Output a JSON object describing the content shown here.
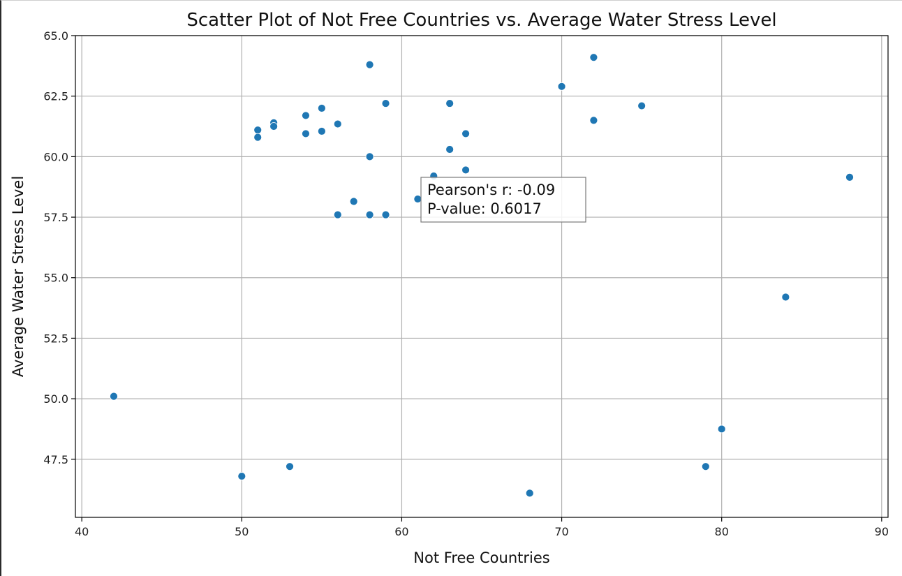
{
  "chart_data": {
    "type": "scatter",
    "title": "Scatter Plot of Not Free Countries vs. Average Water Stress Level",
    "xlabel": "Not Free Countries",
    "ylabel": "Average Water Stress Level",
    "xlim": [
      39.6,
      90.4
    ],
    "ylim": [
      45.1,
      65.0
    ],
    "xticks": [
      40,
      50,
      60,
      70,
      80,
      90
    ],
    "yticks": [
      47.5,
      50.0,
      52.5,
      55.0,
      57.5,
      60.0,
      62.5,
      65.0
    ],
    "xtick_labels": [
      "40",
      "50",
      "60",
      "70",
      "80",
      "90"
    ],
    "ytick_labels": [
      "47.5",
      "50.0",
      "52.5",
      "55.0",
      "57.5",
      "60.0",
      "62.5",
      "65.0"
    ],
    "grid": true,
    "marker_color": "#1f77b4",
    "points": [
      {
        "x": 42,
        "y": 50.1
      },
      {
        "x": 50,
        "y": 46.8
      },
      {
        "x": 51,
        "y": 61.1
      },
      {
        "x": 51,
        "y": 60.8
      },
      {
        "x": 52,
        "y": 61.4
      },
      {
        "x": 52,
        "y": 61.25
      },
      {
        "x": 53,
        "y": 47.2
      },
      {
        "x": 54,
        "y": 61.7
      },
      {
        "x": 54,
        "y": 60.95
      },
      {
        "x": 55,
        "y": 62.0
      },
      {
        "x": 55,
        "y": 61.05
      },
      {
        "x": 56,
        "y": 61.35
      },
      {
        "x": 56,
        "y": 57.6
      },
      {
        "x": 57,
        "y": 58.15
      },
      {
        "x": 58,
        "y": 63.8
      },
      {
        "x": 58,
        "y": 60.0
      },
      {
        "x": 58,
        "y": 57.6
      },
      {
        "x": 59,
        "y": 62.2
      },
      {
        "x": 59,
        "y": 57.6
      },
      {
        "x": 61,
        "y": 58.25
      },
      {
        "x": 62,
        "y": 59.2
      },
      {
        "x": 63,
        "y": 62.2
      },
      {
        "x": 63,
        "y": 60.3
      },
      {
        "x": 64,
        "y": 60.95
      },
      {
        "x": 64,
        "y": 59.45
      },
      {
        "x": 68,
        "y": 46.1
      },
      {
        "x": 70,
        "y": 62.9
      },
      {
        "x": 72,
        "y": 64.1
      },
      {
        "x": 72,
        "y": 61.5
      },
      {
        "x": 75,
        "y": 62.1
      },
      {
        "x": 79,
        "y": 47.2
      },
      {
        "x": 80,
        "y": 48.75
      },
      {
        "x": 84,
        "y": 54.2
      },
      {
        "x": 88,
        "y": 59.15
      }
    ],
    "annotation": {
      "lines": [
        "Pearson's r: -0.09",
        "P-value: 0.6017"
      ]
    }
  }
}
